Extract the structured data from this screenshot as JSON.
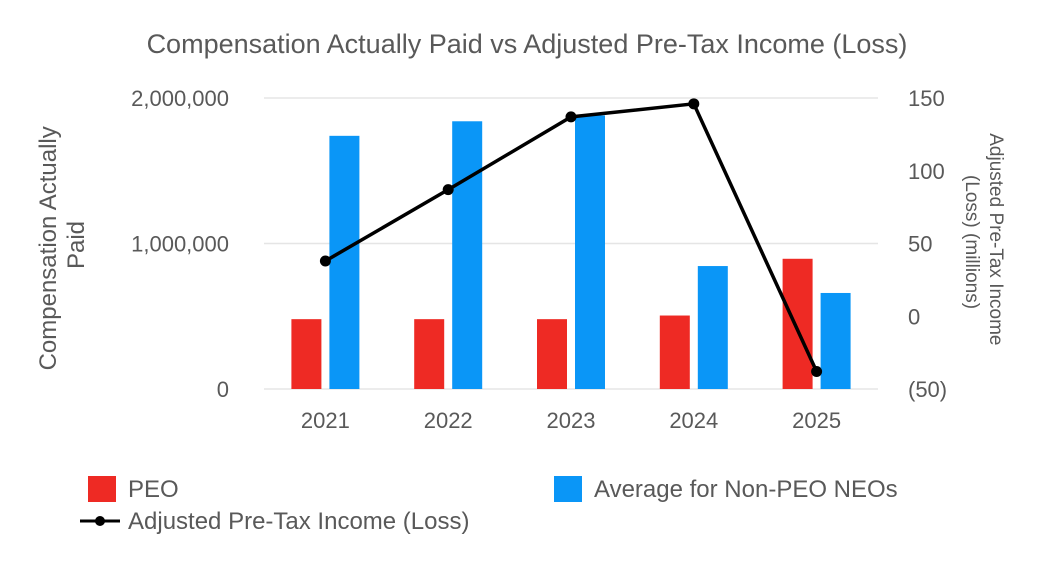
{
  "chart_data": {
    "type": "bar",
    "title": "Compensation Actually Paid vs Adjusted Pre-Tax Income (Loss)",
    "categories": [
      "2021",
      "2022",
      "2023",
      "2024",
      "2025"
    ],
    "ylabel": "Compensation Actually Paid",
    "ylim": [
      0,
      2000000
    ],
    "y_ticks": [
      0,
      1000000,
      2000000
    ],
    "y_tick_labels": [
      "0",
      "1,000,000",
      "2,000,000"
    ],
    "y2label": "Adjusted Pre-Tax Income (Loss) (millions)",
    "y2lim": [
      -50,
      150
    ],
    "y2_ticks": [
      -50,
      0,
      50,
      100,
      150
    ],
    "y2_tick_labels": [
      "(50)",
      "0",
      "50",
      "100",
      "150"
    ],
    "grid": true,
    "legend_position": "bottom",
    "series": [
      {
        "name": "PEO",
        "type": "bar",
        "axis": "left",
        "color": "#ee2a24",
        "values": [
          480000,
          480000,
          480000,
          505000,
          895000
        ]
      },
      {
        "name": "Average for Non-PEO NEOs",
        "type": "bar",
        "axis": "left",
        "color": "#0a96f7",
        "values": [
          1740000,
          1840000,
          1880000,
          845000,
          660000
        ]
      },
      {
        "name": "Adjusted Pre-Tax Income (Loss)",
        "type": "line",
        "axis": "right",
        "color": "#000000",
        "values": [
          38,
          87,
          137,
          146,
          -38
        ]
      }
    ]
  }
}
